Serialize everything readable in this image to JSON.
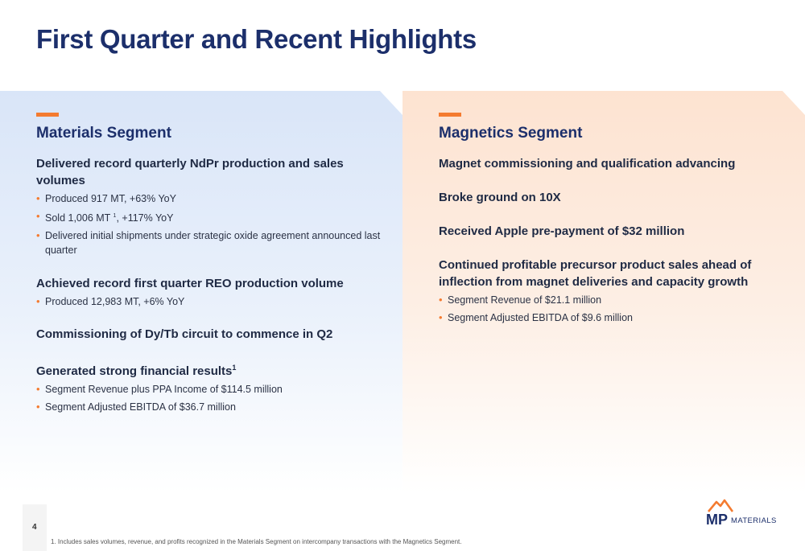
{
  "title": "First Quarter and Recent Highlights",
  "colors": {
    "navy": "#1c2f6b",
    "accent": "#f47b30",
    "blue_panel": "#d9e5f8",
    "orange_panel": "#fde3d1"
  },
  "materials": {
    "title": "Materials Segment",
    "groups": [
      {
        "headline": "Delivered record quarterly NdPr production and sales volumes",
        "sup": "",
        "bullets": [
          {
            "text": "Produced 917 MT, +63% YoY",
            "sup": "",
            "after": ""
          },
          {
            "text": "Sold 1,006 MT ",
            "sup": "1",
            "after": ", +117% YoY"
          },
          {
            "text": "Delivered initial shipments under strategic oxide agreement announced last quarter",
            "sup": "",
            "after": ""
          }
        ]
      },
      {
        "headline": "Achieved record first quarter REO production volume",
        "sup": "",
        "bullets": [
          {
            "text": "Produced 12,983 MT, +6% YoY",
            "sup": "",
            "after": ""
          }
        ]
      },
      {
        "headline": "Commissioning of Dy/Tb circuit to commence in Q2",
        "sup": "",
        "bullets": []
      },
      {
        "headline": "Generated strong financial results",
        "sup": "1",
        "bullets": [
          {
            "text": "Segment Revenue plus PPA Income of $114.5 million",
            "sup": "",
            "after": ""
          },
          {
            "text": "Segment Adjusted EBITDA of $36.7 million",
            "sup": "",
            "after": ""
          }
        ]
      }
    ]
  },
  "magnetics": {
    "title": "Magnetics Segment",
    "groups": [
      {
        "headline": "Magnet commissioning and qualification advancing",
        "sup": "",
        "bullets": []
      },
      {
        "headline": "Broke ground on 10X",
        "sup": "",
        "bullets": []
      },
      {
        "headline": "Received Apple pre-payment of $32 million",
        "sup": "",
        "bullets": []
      },
      {
        "headline": "Continued profitable precursor product sales ahead of inflection from magnet deliveries and capacity growth",
        "sup": "",
        "bullets": [
          {
            "text": "Segment Revenue of $21.1 million",
            "sup": "",
            "after": ""
          },
          {
            "text": "Segment Adjusted EBITDA of $9.6 million",
            "sup": "",
            "after": ""
          }
        ]
      }
    ]
  },
  "page_number": "4",
  "footnote": "1. Includes sales volumes, revenue, and profits recognized in the Materials Segment on intercompany transactions with the Magnetics Segment.",
  "logo": {
    "mark": "MP",
    "word": "MATERIALS",
    "icon": "mountain-logo-icon"
  }
}
